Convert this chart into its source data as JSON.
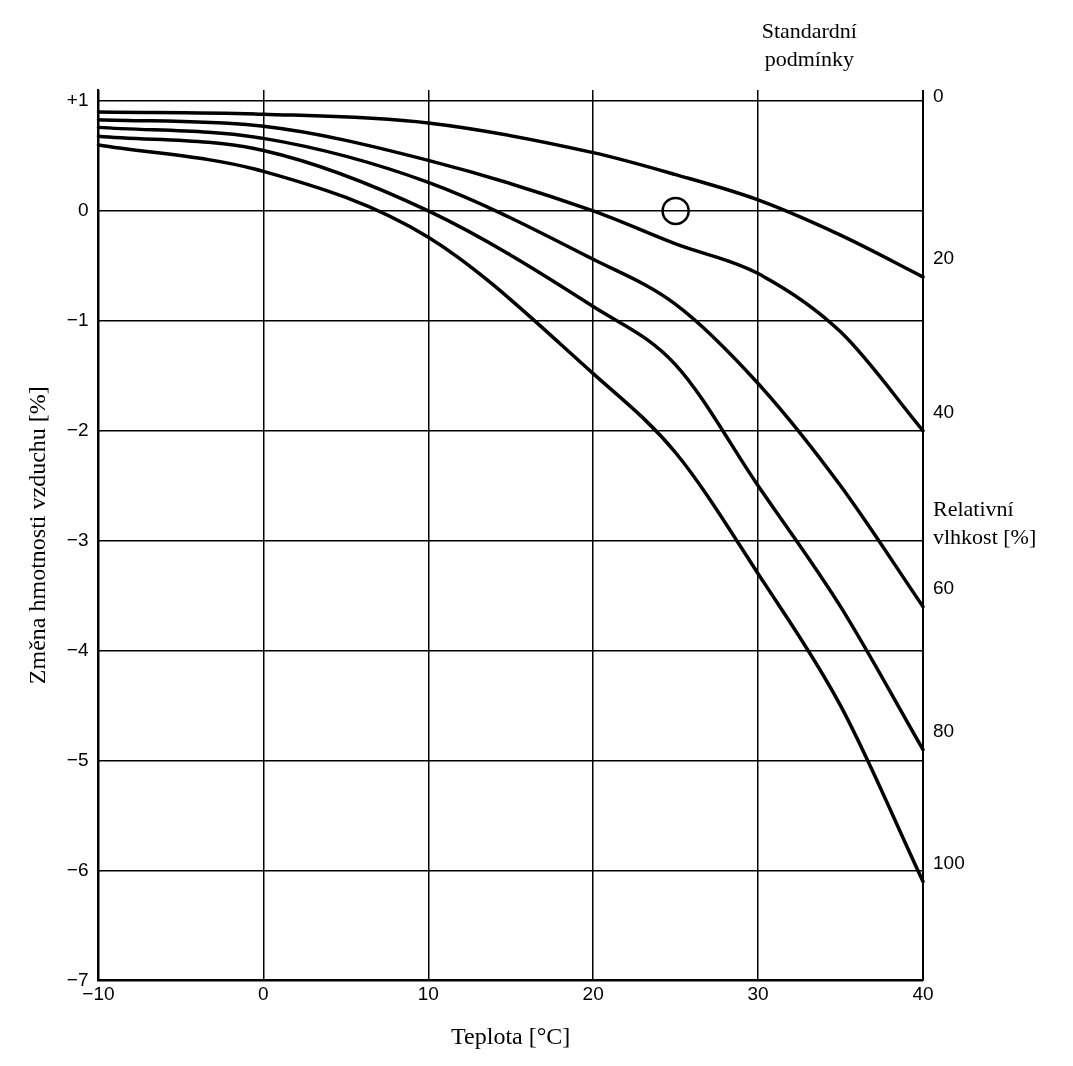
{
  "chart_data": {
    "type": "line",
    "xlabel": "Teplota [°C]",
    "ylabel": "Změna hmotnosti vzduchu [%]",
    "x": [
      -10,
      0,
      10,
      20,
      25,
      30,
      35,
      40
    ],
    "series": [
      {
        "name": "20",
        "color": "#000000",
        "values": [
          0.9,
          0.88,
          0.8,
          0.53,
          0.33,
          0.1,
          -0.22,
          -0.6
        ]
      },
      {
        "name": "40",
        "color": "#000000",
        "values": [
          0.83,
          0.77,
          0.46,
          0.0,
          -0.3,
          -0.57,
          -1.1,
          -2.0
        ]
      },
      {
        "name": "60",
        "color": "#000000",
        "values": [
          0.76,
          0.66,
          0.26,
          -0.44,
          -0.85,
          -1.57,
          -2.5,
          -3.6
        ]
      },
      {
        "name": "80",
        "color": "#000000",
        "values": [
          0.68,
          0.55,
          0.0,
          -0.87,
          -1.4,
          -2.5,
          -3.6,
          -4.9
        ]
      },
      {
        "name": "100",
        "color": "#000000",
        "values": [
          0.6,
          0.36,
          -0.24,
          -1.48,
          -2.2,
          -3.3,
          -4.5,
          -6.1
        ]
      },
      {
        "type": "scatter",
        "marker": "circle",
        "color": "#000000",
        "x": [
          25
        ],
        "values": [
          0
        ]
      }
    ],
    "marker": "none",
    "line_style": "solid",
    "grid": true,
    "legend": false,
    "xlim": [
      -10,
      40
    ],
    "xticks": [
      {
        "value": -10,
        "label": "−10"
      },
      0,
      10,
      20,
      30,
      40
    ],
    "ylim": [
      -7,
      1.1
    ],
    "yticks": [
      {
        "value": 1,
        "label": "+1"
      },
      0,
      {
        "value": -1,
        "label": "−1"
      },
      {
        "value": -2,
        "label": "−2"
      },
      {
        "value": -3,
        "label": "−3"
      },
      {
        "value": -4,
        "label": "−4"
      },
      {
        "value": -5,
        "label": "−5"
      },
      {
        "value": -6,
        "label": "−6"
      },
      {
        "value": -7,
        "label": "−7"
      }
    ],
    "annotations": [
      "Standardní podmínky",
      "0",
      "Relativní vlhkost [%]"
    ]
  }
}
